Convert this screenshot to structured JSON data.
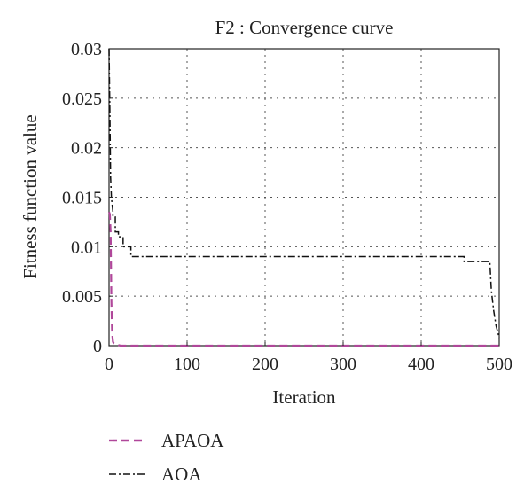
{
  "chart_data": {
    "type": "line",
    "title": "F2 : Convergence curve",
    "xlabel": "Iteration",
    "ylabel": "Fitness function value",
    "xlim": [
      0,
      500
    ],
    "ylim": [
      0,
      0.03
    ],
    "x_ticks": [
      "0",
      "100",
      "200",
      "300",
      "400",
      "500"
    ],
    "y_ticks": [
      "0",
      "0.005",
      "0.01",
      "0.015",
      "0.02",
      "0.025",
      "0.03"
    ],
    "grid": true,
    "legend_position": "below-left",
    "series": [
      {
        "name": "APAOA",
        "color": "#b0479a",
        "style": "dashed",
        "x": [
          0,
          1,
          2,
          3,
          4,
          5,
          6,
          8,
          10,
          15,
          500
        ],
        "y": [
          0.0135,
          0.0133,
          0.0115,
          0.0045,
          0.0012,
          0.0004,
          0.00025,
          0.00015,
          0.0001,
          0.0,
          0.0
        ]
      },
      {
        "name": "AOA",
        "color": "#111111",
        "style": "dashdot",
        "x": [
          0,
          1,
          2,
          3,
          5,
          5,
          8,
          8,
          12,
          12,
          18,
          18,
          28,
          28,
          455,
          455,
          488,
          490,
          493,
          496,
          500
        ],
        "y": [
          0.03,
          0.024,
          0.017,
          0.015,
          0.0135,
          0.013,
          0.013,
          0.0115,
          0.0115,
          0.011,
          0.011,
          0.01,
          0.01,
          0.009,
          0.009,
          0.0085,
          0.0085,
          0.0055,
          0.0035,
          0.002,
          0.0008
        ]
      }
    ]
  }
}
